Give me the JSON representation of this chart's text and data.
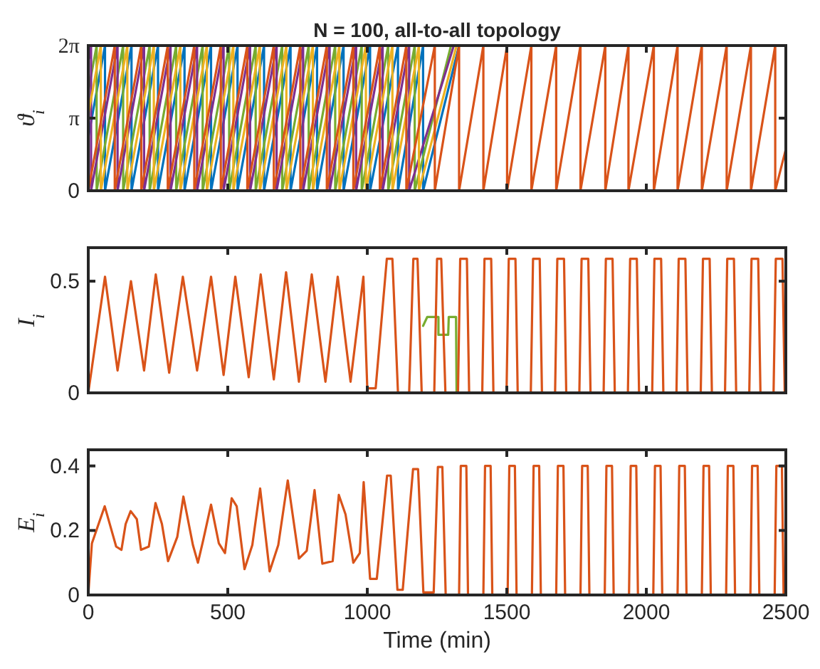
{
  "chart_data": [
    {
      "type": "line",
      "title": "N = 100, all-to-all topology",
      "ylabel": "ϑ$_{i}$",
      "xlim": [
        0,
        2500
      ],
      "xticks": [
        0,
        500,
        1000,
        1500,
        2000,
        2500
      ],
      "ylim": [
        0,
        6.28
      ],
      "yticks": [
        0,
        {
          "value": 3.14,
          "label": "π"
        },
        {
          "value": 6.28,
          "label": "2π"
        }
      ],
      "tick_labels": "y",
      "grid": false,
      "line_style": "solid",
      "marker": "none",
      "series": [
        {
          "color": "#0072bd",
          "x": [
            0,
            60,
            60,
            155,
            155,
            250,
            250,
            345,
            345,
            440,
            440,
            535,
            535,
            630,
            630,
            725,
            725,
            820,
            820,
            915,
            915,
            1010,
            1010,
            1110,
            1110,
            1200,
            1200,
            1329
          ],
          "values": [
            2.3,
            6.28,
            0,
            6.28,
            0,
            6.28,
            0,
            6.28,
            0,
            6.28,
            0,
            6.28,
            0,
            6.28,
            0,
            6.28,
            0,
            6.28,
            0,
            6.28,
            0,
            6.28,
            0,
            6.28,
            0,
            6.28,
            0,
            6.28
          ]
        },
        {
          "color": "#77ac30",
          "x": [
            0,
            30,
            30,
            125,
            125,
            220,
            220,
            315,
            315,
            410,
            410,
            505,
            505,
            600,
            600,
            695,
            695,
            790,
            790,
            885,
            885,
            980,
            980,
            1075,
            1075,
            1170,
            1170,
            1300
          ],
          "values": [
            4.3,
            6.28,
            0,
            6.28,
            0,
            6.28,
            0,
            6.28,
            0,
            6.28,
            0,
            6.28,
            0,
            6.28,
            0,
            6.28,
            0,
            6.28,
            0,
            6.28,
            0,
            6.28,
            0,
            6.28,
            0,
            6.28,
            0,
            6.28
          ]
        },
        {
          "color": "#7e2f8e",
          "x": [
            0,
            10,
            10,
            105,
            105,
            200,
            200,
            295,
            295,
            390,
            390,
            485,
            485,
            580,
            580,
            675,
            675,
            770,
            770,
            865,
            865,
            960,
            960,
            1055,
            1055,
            1150,
            1150,
            1310
          ],
          "values": [
            5.6,
            6.28,
            0,
            6.28,
            0,
            6.28,
            0,
            6.28,
            0,
            6.28,
            0,
            6.28,
            0,
            6.28,
            0,
            6.28,
            0,
            6.28,
            0,
            6.28,
            0,
            6.28,
            0,
            6.28,
            0,
            6.28,
            0,
            6.28
          ]
        },
        {
          "color": "#edb120",
          "x": [
            0,
            45,
            45,
            140,
            140,
            235,
            235,
            330,
            330,
            425,
            425,
            520,
            520,
            615,
            615,
            710,
            710,
            805,
            805,
            900,
            900,
            995,
            995,
            1090,
            1090,
            1185,
            1185,
            1320
          ],
          "values": [
            3.3,
            6.28,
            0,
            6.28,
            0,
            6.28,
            0,
            6.28,
            0,
            6.28,
            0,
            6.28,
            0,
            6.28,
            0,
            6.28,
            0,
            6.28,
            0,
            6.28,
            0,
            6.28,
            0,
            6.28,
            0,
            6.28,
            0,
            6.28
          ]
        },
        {
          "color": "#d95319",
          "x": [
            0,
            95,
            95,
            190,
            190,
            285,
            285,
            380,
            380,
            475,
            475,
            570,
            570,
            665,
            665,
            760,
            760,
            855,
            855,
            950,
            950,
            1045,
            1045,
            1140,
            1140,
            1242,
            1242,
            1329,
            1329,
            1416,
            1416,
            1501,
            1501,
            1588,
            1588,
            1677,
            1677,
            1764,
            1764,
            1853,
            1853,
            1936,
            1936,
            2027,
            2027,
            2112,
            2112,
            2199,
            2199,
            2288,
            2288,
            2375,
            2375,
            2462,
            2462,
            2500
          ],
          "values": [
            0,
            6.28,
            0,
            6.28,
            0,
            6.28,
            0,
            6.28,
            0,
            6.28,
            0,
            6.28,
            0,
            6.28,
            0,
            6.28,
            0,
            6.28,
            0,
            6.28,
            0,
            6.28,
            0,
            6.28,
            0,
            6.28,
            0,
            6.28,
            0,
            6.28,
            0,
            6.28,
            0,
            6.28,
            0,
            6.28,
            0,
            6.28,
            0,
            6.28,
            0,
            6.28,
            0,
            6.28,
            0,
            6.28,
            0,
            6.28,
            0,
            6.28,
            0,
            6.28,
            0,
            6.28,
            0,
            1.8
          ]
        }
      ]
    },
    {
      "type": "line",
      "ylabel": "I$_{i}$",
      "xlim": [
        0,
        2500
      ],
      "xticks": [
        0,
        500,
        1000,
        1500,
        2000,
        2500
      ],
      "ylim": [
        0,
        0.65
      ],
      "yticks": [
        0,
        0.5
      ],
      "tick_labels": "y",
      "grid": false,
      "line_style": "solid",
      "marker": "none",
      "series": [
        {
          "color": "#77ac30",
          "x": [
            1200,
            1215,
            1255,
            1255,
            1290,
            1292,
            1318,
            1320
          ],
          "values": [
            0.3,
            0.34,
            0.34,
            0.26,
            0.26,
            0.34,
            0.34,
            0
          ]
        },
        {
          "color": "#d95319",
          "x": [
            0,
            60,
            105,
            153,
            200,
            242,
            290,
            339,
            390,
            440,
            485,
            527,
            575,
            618,
            665,
            709,
            755,
            801,
            850,
            894,
            940,
            986,
            1000,
            1030,
            1070,
            1090,
            1110,
            1150,
            1165,
            1180,
            1195,
            1240,
            1250,
            1265,
            1280,
            1325,
            1333,
            1357,
            1365,
            1412,
            1420,
            1444,
            1452,
            1499,
            1507,
            1531,
            1539,
            1586,
            1594,
            1618,
            1626,
            1673,
            1681,
            1705,
            1713,
            1760,
            1768,
            1792,
            1800,
            1847,
            1855,
            1879,
            1887,
            1934,
            1942,
            1966,
            1974,
            2021,
            2029,
            2053,
            2061,
            2108,
            2116,
            2140,
            2148,
            2195,
            2203,
            2227,
            2235,
            2282,
            2290,
            2314,
            2322,
            2369,
            2377,
            2401,
            2409,
            2456,
            2464,
            2488,
            2496,
            2500
          ],
          "values": [
            0,
            0.52,
            0.1,
            0.5,
            0.1,
            0.53,
            0.09,
            0.52,
            0.1,
            0.52,
            0.08,
            0.52,
            0.07,
            0.53,
            0.06,
            0.54,
            0.05,
            0.53,
            0.05,
            0.52,
            0.05,
            0.52,
            0.02,
            0.02,
            0.6,
            0.6,
            0,
            0,
            0.6,
            0.6,
            0,
            0,
            0.6,
            0.6,
            0,
            0,
            0.6,
            0.6,
            0,
            0,
            0.6,
            0.6,
            0,
            0,
            0.6,
            0.6,
            0,
            0,
            0.6,
            0.6,
            0,
            0,
            0.6,
            0.6,
            0,
            0,
            0.6,
            0.6,
            0,
            0,
            0.6,
            0.6,
            0,
            0,
            0.6,
            0.6,
            0,
            0,
            0.6,
            0.6,
            0,
            0,
            0.6,
            0.6,
            0,
            0,
            0.6,
            0.6,
            0,
            0,
            0.6,
            0.6,
            0,
            0,
            0.6,
            0.6,
            0,
            0,
            0.6,
            0.6,
            0,
            0
          ]
        }
      ]
    },
    {
      "type": "line",
      "ylabel": "E$_{i}$",
      "xlabel": "Time (min)",
      "xlim": [
        0,
        2500
      ],
      "xticks": [
        0,
        500,
        1000,
        1500,
        2000,
        2500
      ],
      "ylim": [
        0,
        0.45
      ],
      "yticks": [
        0,
        0.2,
        0.4
      ],
      "grid": false,
      "line_style": "solid",
      "marker": "none",
      "series": [
        {
          "color": "#d95319",
          "x": [
            0,
            13,
            59,
            100,
            119,
            134,
            152,
            174,
            189,
            217,
            241,
            264,
            286,
            319,
            341,
            375,
            393,
            412,
            440,
            468,
            490,
            514,
            532,
            560,
            588,
            616,
            650,
            681,
            715,
            755,
            783,
            811,
            839,
            876,
            898,
            922,
            950,
            973,
            987,
            1010,
            1034,
            1071,
            1084,
            1108,
            1127,
            1164,
            1182,
            1201,
            1238,
            1253,
            1269,
            1281,
            1321,
            1329,
            1335,
            1355,
            1361,
            1416,
            1422,
            1442,
            1448,
            1503,
            1509,
            1529,
            1535,
            1590,
            1596,
            1616,
            1622,
            1677,
            1683,
            1703,
            1709,
            1764,
            1770,
            1790,
            1796,
            1851,
            1857,
            1877,
            1883,
            1938,
            1944,
            1964,
            1970,
            2025,
            2031,
            2051,
            2057,
            2112,
            2118,
            2138,
            2144,
            2199,
            2205,
            2225,
            2231,
            2286,
            2292,
            2312,
            2318,
            2373,
            2379,
            2399,
            2405,
            2460,
            2466,
            2486,
            2492
          ],
          "values": [
            0,
            0.16,
            0.275,
            0.15,
            0.14,
            0.22,
            0.26,
            0.235,
            0.14,
            0.15,
            0.285,
            0.22,
            0.105,
            0.18,
            0.305,
            0.155,
            0.1,
            0.17,
            0.28,
            0.16,
            0.13,
            0.3,
            0.275,
            0.08,
            0.155,
            0.33,
            0.073,
            0.155,
            0.355,
            0.113,
            0.137,
            0.325,
            0.097,
            0.105,
            0.31,
            0.25,
            0.1,
            0.13,
            0.35,
            0.05,
            0.05,
            0.37,
            0.37,
            0.016,
            0.016,
            0.39,
            0.39,
            0.008,
            0.008,
            0.397,
            0.397,
            0,
            0,
            0,
            0.4,
            0.4,
            0,
            0,
            0.4,
            0.4,
            0,
            0,
            0.4,
            0.4,
            0,
            0,
            0.4,
            0.4,
            0,
            0,
            0.4,
            0.4,
            0,
            0,
            0.4,
            0.4,
            0,
            0,
            0.4,
            0.4,
            0,
            0,
            0.4,
            0.4,
            0,
            0,
            0.4,
            0.4,
            0,
            0,
            0.4,
            0.4,
            0,
            0,
            0.4,
            0.4,
            0,
            0,
            0.4,
            0.4,
            0,
            0,
            0.4,
            0.4,
            0,
            0,
            0.4,
            0.4,
            0
          ]
        }
      ]
    }
  ]
}
